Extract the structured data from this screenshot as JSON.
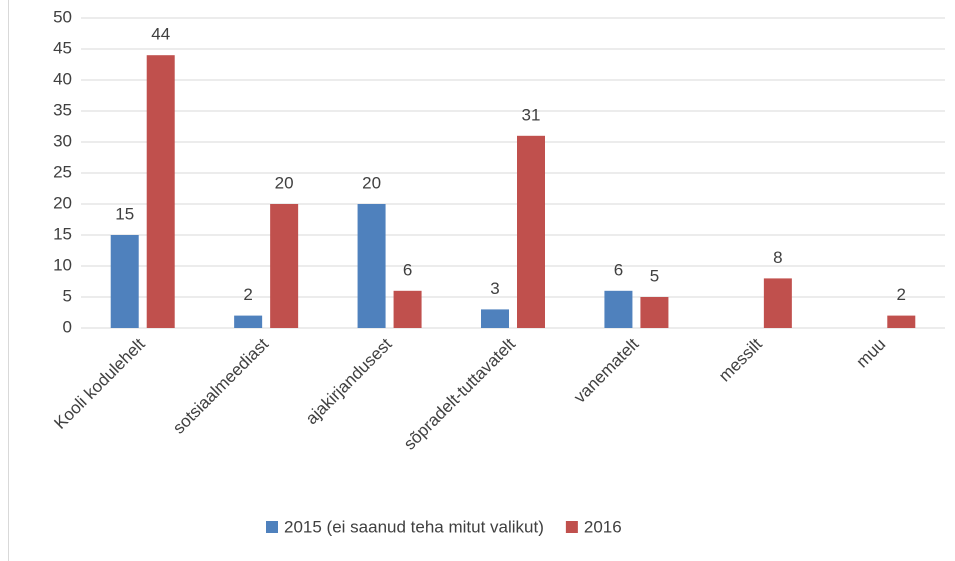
{
  "chart_data": {
    "type": "bar",
    "categories": [
      "Kooli kodulehelt",
      "sotsiaalmeediast",
      "ajakirjandusest",
      "sõpradelt-tuttavatelt",
      "vanematelt",
      "messilt",
      "muu"
    ],
    "series": [
      {
        "name": "2015 (ei saanud teha mitut valikut)",
        "color": "#4f81bd",
        "values": [
          15,
          2,
          20,
          3,
          6,
          null,
          null
        ]
      },
      {
        "name": "2016",
        "color": "#c0504d",
        "values": [
          44,
          20,
          6,
          31,
          5,
          8,
          2
        ]
      }
    ],
    "ylim": [
      0,
      50
    ],
    "yticks": [
      0,
      5,
      10,
      15,
      20,
      25,
      30,
      35,
      40,
      45,
      50
    ],
    "grid": true,
    "legend": "bottom"
  }
}
